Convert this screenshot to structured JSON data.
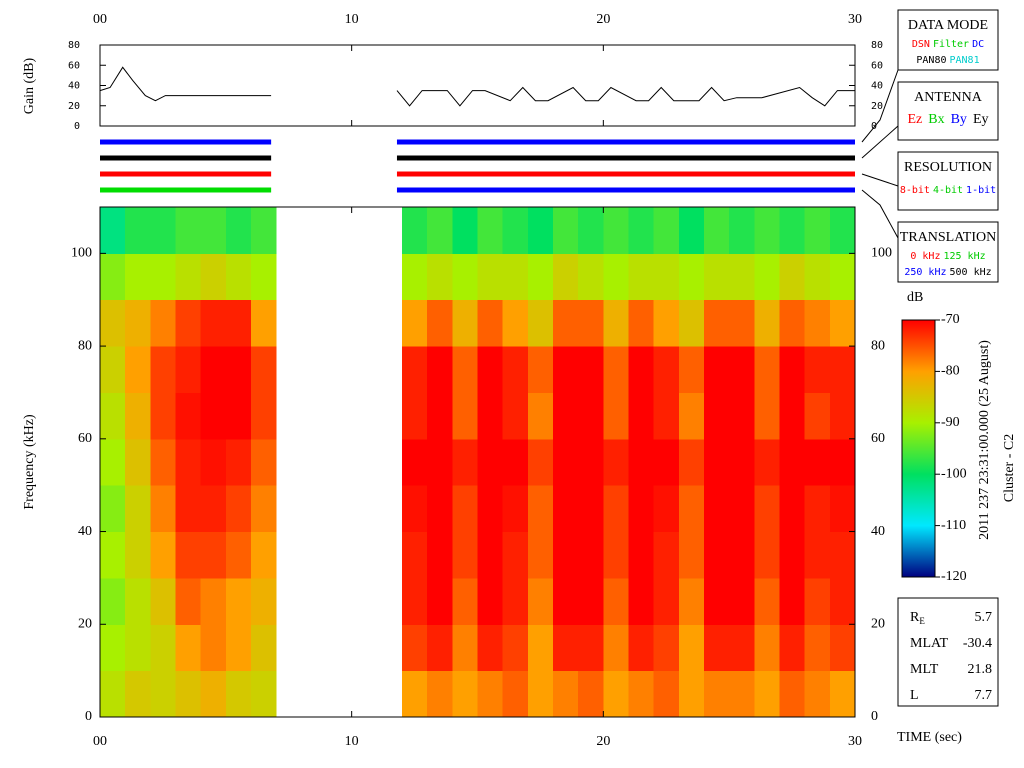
{
  "chart_data": [
    {
      "type": "line",
      "ylabel": "Gain (dB)",
      "xlim": [
        0,
        30
      ],
      "xticks": [
        {
          "value": 0,
          "label": "00"
        },
        10,
        20,
        30
      ],
      "ylim": [
        0,
        80
      ],
      "yticks": [
        0,
        20,
        40,
        60,
        80
      ],
      "series": [
        {
          "color": "#000000",
          "x": [
            0,
            0.4,
            0.9,
            1.3,
            1.8,
            2.2,
            2.6,
            6.8,
            9,
            11.8,
            12.3,
            12.8,
            13.8,
            14.3,
            14.8,
            15.3,
            16.3,
            16.8,
            17.3,
            17.8,
            18.8,
            19.3,
            19.8,
            20.3,
            21.3,
            21.8,
            22.3,
            22.8,
            23.8,
            24.3,
            24.8,
            25.3,
            26.3,
            27.8,
            28.3,
            28.8,
            29.3,
            30
          ],
          "values": [
            35,
            38,
            58,
            45,
            30,
            25,
            30,
            30,
            null,
            35,
            20,
            35,
            35,
            20,
            35,
            35,
            25,
            38,
            25,
            25,
            38,
            25,
            25,
            38,
            25,
            25,
            38,
            25,
            25,
            38,
            25,
            28,
            28,
            38,
            28,
            20,
            35,
            35
          ]
        }
      ]
    },
    {
      "type": "heatmap",
      "ylabel": "Frequency (kHz)",
      "xlabel": "TIME (sec)",
      "xlim": [
        0,
        30
      ],
      "xticks": [
        {
          "value": 0,
          "label": "00"
        },
        10,
        20,
        30
      ],
      "ylim": [
        0,
        110
      ],
      "yticks": [
        0,
        20,
        40,
        60,
        80,
        100
      ],
      "time_bins": [
        0,
        1,
        2,
        3,
        4,
        5,
        6,
        7,
        8,
        9,
        10,
        11,
        12,
        13,
        14,
        15,
        16,
        17,
        18,
        19,
        20,
        21,
        22,
        23,
        24,
        25,
        26,
        27,
        28,
        29,
        30
      ],
      "freq_bins": [
        0,
        10,
        20,
        30,
        40,
        50,
        60,
        70,
        80,
        90,
        100,
        110
      ],
      "z": [
        [
          -88,
          -85,
          -86,
          -84,
          -82,
          -85,
          -86,
          null,
          null,
          null,
          null,
          null,
          -80,
          -78,
          -80,
          -78,
          -76,
          -80,
          -78,
          -76,
          -80,
          -78,
          -76,
          -80,
          -78,
          -78,
          -80,
          -76,
          -78,
          -80
        ],
        [
          -90,
          -88,
          -86,
          -80,
          -78,
          -80,
          -84,
          null,
          null,
          null,
          null,
          null,
          -74,
          -72,
          -78,
          -72,
          -74,
          -80,
          -72,
          -72,
          -78,
          -72,
          -74,
          -80,
          -72,
          -72,
          -78,
          -72,
          -76,
          -74
        ],
        [
          -92,
          -88,
          -84,
          -76,
          -78,
          -80,
          -82,
          null,
          null,
          null,
          null,
          null,
          -72,
          -70,
          -76,
          -70,
          -72,
          -78,
          -70,
          -70,
          -76,
          -70,
          -72,
          -78,
          -70,
          -70,
          -76,
          -70,
          -74,
          -72
        ],
        [
          -90,
          -86,
          -80,
          -74,
          -74,
          -76,
          -80,
          null,
          null,
          null,
          null,
          null,
          -72,
          -70,
          -74,
          -70,
          -72,
          -76,
          -70,
          -70,
          -74,
          -70,
          -72,
          -76,
          -70,
          -70,
          -74,
          -70,
          -72,
          -72
        ],
        [
          -92,
          -86,
          -78,
          -72,
          -72,
          -74,
          -78,
          null,
          null,
          null,
          null,
          null,
          -71,
          -70,
          -74,
          -70,
          -71,
          -76,
          -70,
          -70,
          -74,
          -70,
          -71,
          -76,
          -70,
          -70,
          -74,
          -70,
          -72,
          -71
        ],
        [
          -90,
          -84,
          -76,
          -72,
          -71,
          -72,
          -76,
          null,
          null,
          null,
          null,
          null,
          -70,
          -70,
          -72,
          -70,
          -70,
          -74,
          -70,
          -70,
          -72,
          -70,
          -70,
          -74,
          -70,
          -70,
          -72,
          -70,
          -70,
          -70
        ],
        [
          -88,
          -82,
          -74,
          -71,
          -70,
          -70,
          -74,
          null,
          null,
          null,
          null,
          null,
          -72,
          -70,
          -76,
          -70,
          -72,
          -78,
          -70,
          -70,
          -76,
          -70,
          -72,
          -78,
          -70,
          -70,
          -76,
          -70,
          -74,
          -72
        ],
        [
          -86,
          -80,
          -74,
          -72,
          -70,
          -70,
          -74,
          null,
          null,
          null,
          null,
          null,
          -72,
          -70,
          -76,
          -70,
          -72,
          -76,
          -70,
          -70,
          -76,
          -70,
          -72,
          -76,
          -70,
          -70,
          -76,
          -70,
          -72,
          -72
        ],
        [
          -84,
          -82,
          -78,
          -74,
          -72,
          -72,
          -80,
          null,
          null,
          null,
          null,
          null,
          -80,
          -76,
          -82,
          -76,
          -80,
          -84,
          -76,
          -76,
          -82,
          -76,
          -80,
          -84,
          -76,
          -76,
          -82,
          -76,
          -78,
          -80
        ],
        [
          -92,
          -90,
          -90,
          -88,
          -86,
          -88,
          -90,
          null,
          null,
          null,
          null,
          null,
          -90,
          -88,
          -90,
          -88,
          -88,
          -90,
          -86,
          -88,
          -90,
          -88,
          -88,
          -90,
          -88,
          -88,
          -90,
          -86,
          -88,
          -90
        ],
        [
          -102,
          -98,
          -98,
          -96,
          -96,
          -98,
          -96,
          null,
          null,
          null,
          null,
          null,
          -98,
          -96,
          -100,
          -96,
          -98,
          -100,
          -96,
          -98,
          -96,
          -98,
          -96,
          -100,
          -96,
          -98,
          -96,
          -98,
          -96,
          -98
        ]
      ],
      "colormap": [
        "#000080",
        "#00e8ff",
        "#00e060",
        "#a8f000",
        "#ffa000",
        "#ff0000"
      ],
      "colorbar": {
        "label": "dB",
        "lim": [
          -120,
          -70
        ],
        "ticks": [
          -70,
          -80,
          -90,
          -100,
          -110,
          -120
        ]
      }
    }
  ],
  "mode_bars": {
    "x_ranges": [
      [
        0,
        6.8
      ],
      [
        11.8,
        30
      ]
    ],
    "rows": [
      {
        "colors": [
          "#0000ff",
          "#0000ff"
        ]
      },
      {
        "colors": [
          "#000000",
          "#000000"
        ]
      },
      {
        "colors": [
          "#ff0000",
          "#ff0000"
        ]
      },
      {
        "colors": [
          "#00dd00",
          "#0000ff"
        ]
      }
    ]
  },
  "legends": [
    {
      "title": "DATA MODE",
      "rows": [
        [
          {
            "text": "DSN",
            "color": "#ff0000"
          },
          {
            "text": "Filter",
            "color": "#00cc00"
          },
          {
            "text": "DC",
            "color": "#0000ff"
          }
        ],
        [
          {
            "text": "PAN80",
            "color": "#000000"
          },
          {
            "text": "PAN81",
            "color": "#00cccc"
          }
        ]
      ]
    },
    {
      "title": "ANTENNA",
      "rows": [
        [
          {
            "text": "Ez",
            "color": "#ff0000"
          },
          {
            "text": "Bx",
            "color": "#00cc00"
          },
          {
            "text": "By",
            "color": "#0000ff"
          },
          {
            "text": "Ey",
            "color": "#000000"
          }
        ]
      ]
    },
    {
      "title": "RESOLUTION",
      "rows": [
        [
          {
            "text": "8-bit",
            "color": "#ff0000"
          },
          {
            "text": "4-bit",
            "color": "#00cc00"
          },
          {
            "text": "1-bit",
            "color": "#0000ff"
          }
        ]
      ]
    },
    {
      "title": "TRANSLATION",
      "rows": [
        [
          {
            "text": "0 kHz",
            "color": "#ff0000"
          },
          {
            "text": "125 kHz",
            "color": "#00cc00"
          }
        ],
        [
          {
            "text": "250 kHz",
            "color": "#0000ff"
          },
          {
            "text": "500 kHz",
            "color": "#000000"
          }
        ]
      ]
    }
  ],
  "date_label": "2011 237 23:31:00.000 (25 August)",
  "spacecraft": "Cluster - C2",
  "orbit": [
    {
      "label": "R",
      "sub": "E",
      "value": 5.7
    },
    {
      "label": "MLAT",
      "value": -30.4
    },
    {
      "label": "MLT",
      "value": 21.8
    },
    {
      "label": "L",
      "value": 7.7
    }
  ]
}
